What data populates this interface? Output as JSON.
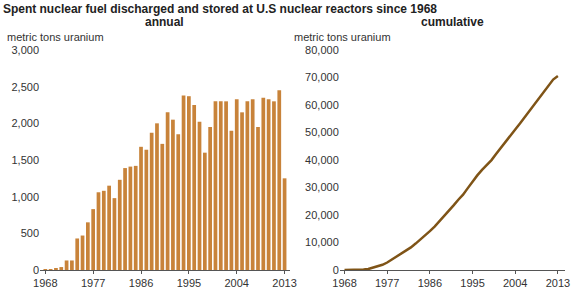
{
  "title": "Spent nuclear fuel discharged and stored at U.S nuclear reactors since 1968",
  "chart_data": [
    {
      "type": "bar",
      "title": "annual",
      "ylabel": "metric tons uranium",
      "x": [
        1968,
        1969,
        1970,
        1971,
        1972,
        1973,
        1974,
        1975,
        1976,
        1977,
        1978,
        1979,
        1980,
        1981,
        1982,
        1983,
        1984,
        1985,
        1986,
        1987,
        1988,
        1989,
        1990,
        1991,
        1992,
        1993,
        1994,
        1995,
        1996,
        1997,
        1998,
        1999,
        2000,
        2001,
        2002,
        2003,
        2004,
        2005,
        2006,
        2007,
        2008,
        2009,
        2010,
        2011,
        2012,
        2013
      ],
      "values": [
        10,
        10,
        20,
        40,
        130,
        130,
        430,
        470,
        650,
        830,
        1060,
        1080,
        1150,
        980,
        1230,
        1390,
        1410,
        1420,
        1680,
        1640,
        1870,
        2000,
        1720,
        2150,
        2050,
        1850,
        2380,
        2370,
        2250,
        2020,
        1600,
        1950,
        2300,
        2300,
        2300,
        1900,
        2330,
        2150,
        2300,
        2330,
        1950,
        2350,
        2330,
        2300,
        2450,
        1250
      ],
      "color": "#c8833a",
      "xlim": [
        1967,
        2014
      ],
      "xticks": [
        1968,
        1977,
        1986,
        1995,
        2004,
        2013
      ],
      "ylim": [
        0,
        3000
      ],
      "yticks": [
        0,
        500,
        {
          "value": 1000,
          "label": "1,000"
        },
        {
          "value": 1500,
          "label": "1,500"
        },
        {
          "value": 2000,
          "label": "2,000"
        },
        {
          "value": 2500,
          "label": "2,500"
        },
        {
          "value": 3000,
          "label": "3,000"
        }
      ],
      "grid": false
    },
    {
      "type": "line",
      "title": "cumulative",
      "ylabel": "metric tons uranium",
      "x": [
        1968,
        1969,
        1970,
        1971,
        1972,
        1973,
        1974,
        1975,
        1976,
        1977,
        1978,
        1979,
        1980,
        1981,
        1982,
        1983,
        1984,
        1985,
        1986,
        1987,
        1988,
        1989,
        1990,
        1991,
        1992,
        1993,
        1994,
        1995,
        1996,
        1997,
        1998,
        1999,
        2000,
        2001,
        2002,
        2003,
        2004,
        2005,
        2006,
        2007,
        2008,
        2009,
        2010,
        2011,
        2012,
        2013
      ],
      "values": [
        10,
        20,
        40,
        80,
        210,
        340,
        770,
        1240,
        1890,
        2720,
        3780,
        4860,
        6010,
        6990,
        8220,
        9610,
        11020,
        12440,
        14120,
        15760,
        17630,
        19630,
        21350,
        23500,
        25550,
        27400,
        29780,
        32150,
        34400,
        36420,
        38020,
        39970,
        42270,
        44570,
        46870,
        48770,
        51100,
        53250,
        55550,
        57880,
        59830,
        62180,
        64510,
        66810,
        69260,
        70510
      ],
      "color": "#7f5417",
      "xlim": [
        1967,
        2014.5
      ],
      "xticks": [
        1968,
        1977,
        1986,
        1995,
        2004,
        2013
      ],
      "ylim": [
        0,
        80000
      ],
      "yticks": [
        0,
        {
          "value": 10000,
          "label": "10,000"
        },
        {
          "value": 20000,
          "label": "20,000"
        },
        {
          "value": 30000,
          "label": "30,000"
        },
        {
          "value": 40000,
          "label": "40,000"
        },
        {
          "value": 50000,
          "label": "50,000"
        },
        {
          "value": 60000,
          "label": "60,000"
        },
        {
          "value": 70000,
          "label": "70,000"
        },
        {
          "value": 80000,
          "label": "80,000"
        }
      ],
      "grid": false
    }
  ]
}
